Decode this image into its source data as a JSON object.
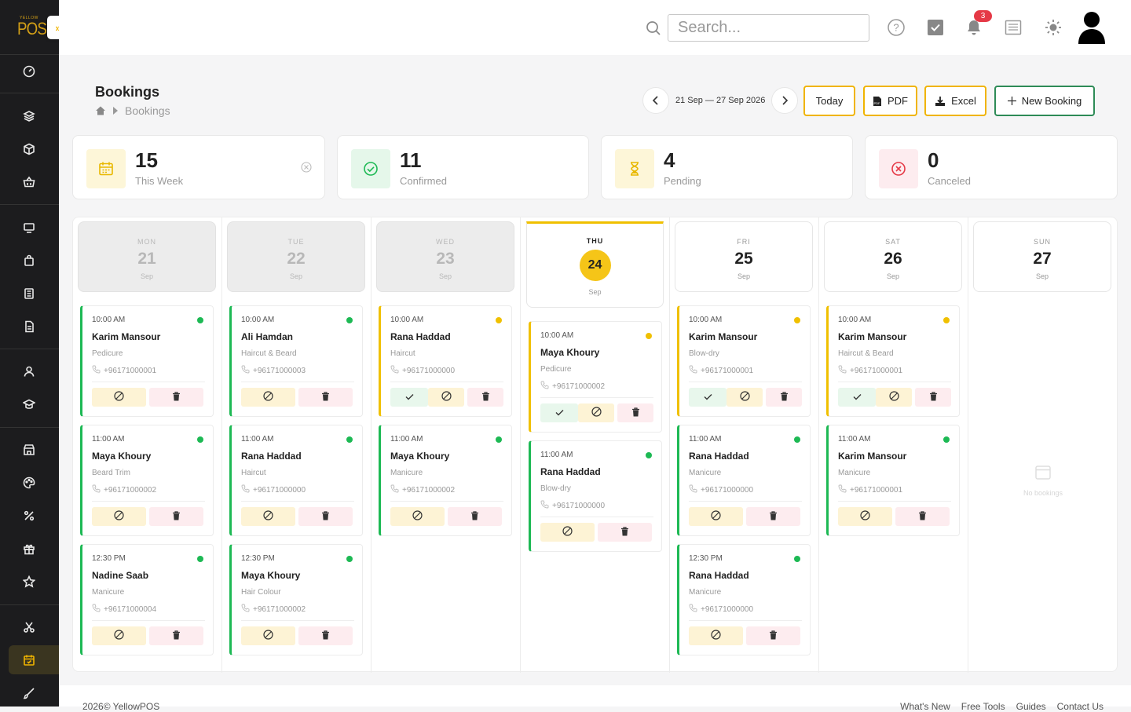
{
  "app": {
    "logo_line1": "YELLOW",
    "logo_line2": "POS"
  },
  "topbar": {
    "search_placeholder": "Search...",
    "notifications_count": "3"
  },
  "page": {
    "title": "Bookings",
    "breadcrumb": [
      "Bookings"
    ]
  },
  "toolbar": {
    "date_range": "21 Sep — 27 Sep 2026",
    "today_label": "Today",
    "pdf_label": "PDF",
    "excel_label": "Excel",
    "new_booking_label": "New Booking"
  },
  "stats": [
    {
      "value": "15",
      "label": "This Week",
      "icon": "calendar-icon",
      "color": "#e8b800"
    },
    {
      "value": "11",
      "label": "Confirmed",
      "icon": "check-circle-icon",
      "color": "#1db954"
    },
    {
      "value": "4",
      "label": "Pending",
      "icon": "hourglass-icon",
      "color": "#e8b800"
    },
    {
      "value": "0",
      "label": "Canceled",
      "icon": "x-circle-icon",
      "color": "#e53946"
    }
  ],
  "days": [
    {
      "name": "MON",
      "num": "21",
      "month": "Sep",
      "state": "past"
    },
    {
      "name": "TUE",
      "num": "22",
      "month": "Sep",
      "state": "past"
    },
    {
      "name": "WED",
      "num": "23",
      "month": "Sep",
      "state": "past"
    },
    {
      "name": "THU",
      "num": "24",
      "month": "Sep",
      "state": "today"
    },
    {
      "name": "FRI",
      "num": "25",
      "month": "Sep",
      "state": "future"
    },
    {
      "name": "SAT",
      "num": "26",
      "month": "Sep",
      "state": "future"
    },
    {
      "name": "SUN",
      "num": "27",
      "month": "Sep",
      "state": "future"
    }
  ],
  "bookings": [
    [
      {
        "time": "10:00 AM",
        "name": "Karim Mansour",
        "service": "Pedicure",
        "phone": "+96171000001",
        "status": "confirmed"
      },
      {
        "time": "11:00 AM",
        "name": "Maya Khoury",
        "service": "Beard Trim",
        "phone": "+96171000002",
        "status": "confirmed"
      },
      {
        "time": "12:30 PM",
        "name": "Nadine Saab",
        "service": "Manicure",
        "phone": "+96171000004",
        "status": "confirmed"
      }
    ],
    [
      {
        "time": "10:00 AM",
        "name": "Ali Hamdan",
        "service": "Haircut & Beard",
        "phone": "+96171000003",
        "status": "confirmed"
      },
      {
        "time": "11:00 AM",
        "name": "Rana Haddad",
        "service": "Haircut",
        "phone": "+96171000000",
        "status": "confirmed"
      },
      {
        "time": "12:30 PM",
        "name": "Maya Khoury",
        "service": "Hair Colour",
        "phone": "+96171000002",
        "status": "confirmed"
      }
    ],
    [
      {
        "time": "10:00 AM",
        "name": "Rana Haddad",
        "service": "Haircut",
        "phone": "+96171000000",
        "status": "pending"
      },
      {
        "time": "11:00 AM",
        "name": "Maya Khoury",
        "service": "Manicure",
        "phone": "+96171000002",
        "status": "confirmed"
      }
    ],
    [
      {
        "time": "10:00 AM",
        "name": "Maya Khoury",
        "service": "Pedicure",
        "phone": "+96171000002",
        "status": "pending"
      },
      {
        "time": "11:00 AM",
        "name": "Rana Haddad",
        "service": "Blow-dry",
        "phone": "+96171000000",
        "status": "confirmed"
      }
    ],
    [
      {
        "time": "10:00 AM",
        "name": "Karim Mansour",
        "service": "Blow-dry",
        "phone": "+96171000001",
        "status": "pending"
      },
      {
        "time": "11:00 AM",
        "name": "Rana Haddad",
        "service": "Manicure",
        "phone": "+96171000000",
        "status": "confirmed"
      },
      {
        "time": "12:30 PM",
        "name": "Rana Haddad",
        "service": "Manicure",
        "phone": "+96171000000",
        "status": "confirmed"
      }
    ],
    [
      {
        "time": "10:00 AM",
        "name": "Karim Mansour",
        "service": "Haircut & Beard",
        "phone": "+96171000001",
        "status": "pending"
      },
      {
        "time": "11:00 AM",
        "name": "Karim Mansour",
        "service": "Manicure",
        "phone": "+96171000001",
        "status": "confirmed"
      }
    ],
    []
  ],
  "empty_day_text": "No bookings",
  "status_colors": {
    "confirmed": "#1db954",
    "pending": "#f0c000"
  },
  "footer": {
    "copyright_prefix": "2026©",
    "brand": "YellowPOS",
    "links": [
      "What's New",
      "Free Tools",
      "Guides",
      "Contact Us"
    ]
  }
}
